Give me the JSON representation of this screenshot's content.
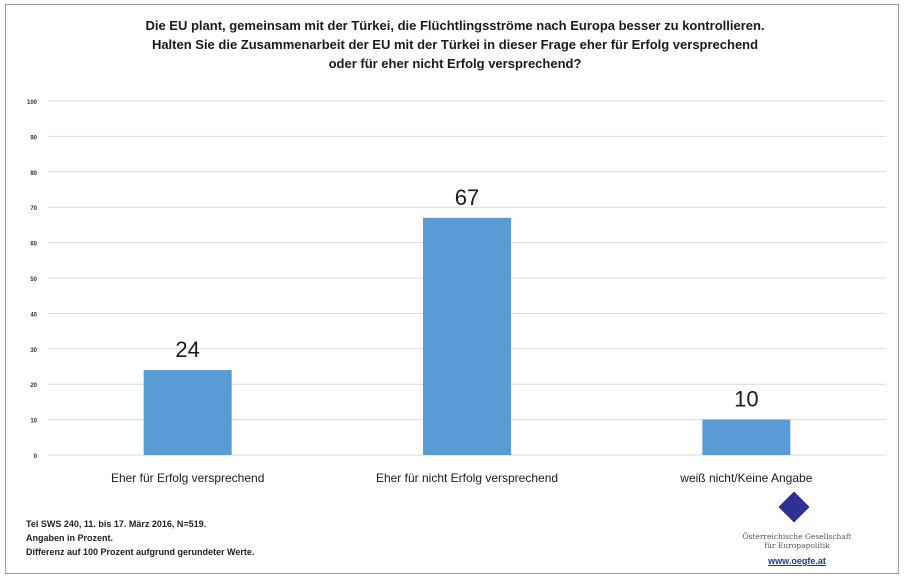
{
  "chart_data": {
    "type": "bar",
    "title_lines": [
      "Die EU plant, gemeinsam mit der Türkei, die Flüchtlingsströme nach Europa besser zu kontrollieren.",
      "Halten Sie die Zusammenarbeit der EU mit der Türkei in dieser Frage eher für Erfolg versprechend",
      "oder für eher nicht Erfolg versprechend?"
    ],
    "categories": [
      "Eher für Erfolg versprechend",
      "Eher für nicht Erfolg versprechend",
      "weiß nicht/Keine Angabe"
    ],
    "values": [
      24,
      67,
      10
    ],
    "data_labels": [
      "24",
      "67",
      "10"
    ],
    "ylim": [
      0,
      100
    ],
    "yticks": [
      0,
      10,
      20,
      30,
      40,
      50,
      60,
      70,
      80,
      90,
      100
    ],
    "ytick_labels": [
      "0",
      "10",
      "20",
      "30",
      "40",
      "50",
      "60",
      "70",
      "80",
      "90",
      "100"
    ],
    "grid": true,
    "legend": "none",
    "colors": {
      "bar": "#5b9bd5",
      "grid": "#d9d9d9",
      "text": "#1a1a1a"
    }
  },
  "footnote": [
    "Tel SWS 240, 11. bis 17. März 2016, N=519.",
    "Angaben in Prozent.",
    "Differenz auf 100 Prozent aufgrund gerundeter Werte."
  ],
  "logo": {
    "name_lines": [
      "Österreichische Gesellschaft",
      "für Europapolitik"
    ],
    "url": "www.oegfe.at",
    "color": "#2e3092"
  }
}
